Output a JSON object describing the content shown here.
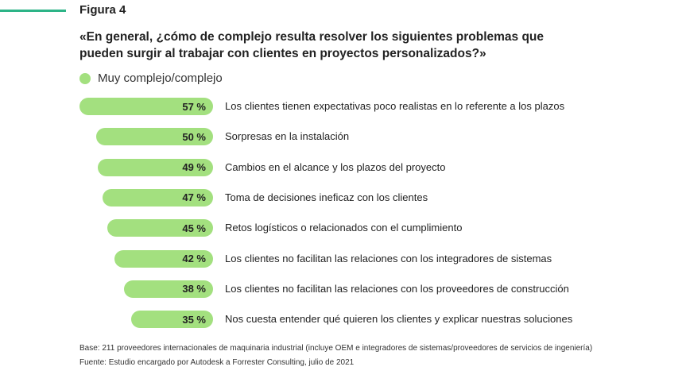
{
  "chart_data": {
    "type": "bar",
    "figure_label": "Figura 4",
    "title": "«En general, ¿cómo de complejo resulta resolver los siguientes problemas que pueden surgir al trabajar con clientes en proyectos personalizados?»",
    "legend": [
      "Muy complejo/complejo"
    ],
    "color": "#a3e07f",
    "unit": "%",
    "categories": [
      "Los clientes tienen expectativas poco realistas en lo referente a los plazos",
      "Sorpresas en la instalación",
      "Cambios en el alcance y los plazos del proyecto",
      "Toma de decisiones ineficaz con los clientes",
      "Retos logísticos o relacionados con el cumplimiento",
      "Los clientes no facilitan las relaciones con los integradores de sistemas",
      "Los clientes no facilitan las relaciones con los proveedores de construcción",
      "Nos cuesta entender qué quieren los clientes y explicar nuestras soluciones"
    ],
    "values": [
      57,
      50,
      49,
      47,
      45,
      42,
      38,
      35
    ],
    "value_labels": [
      "57 %",
      "50 %",
      "49 %",
      "47 %",
      "45 %",
      "42 %",
      "38 %",
      "35 %"
    ]
  },
  "notes": {
    "base": "Base: 211 proveedores internacionales de maquinaria industrial (incluye OEM e integradores de sistemas/proveedores de servicios de ingeniería)",
    "source": "Fuente: Estudio encargado por Autodesk a Forrester Consulting, julio de 2021"
  }
}
